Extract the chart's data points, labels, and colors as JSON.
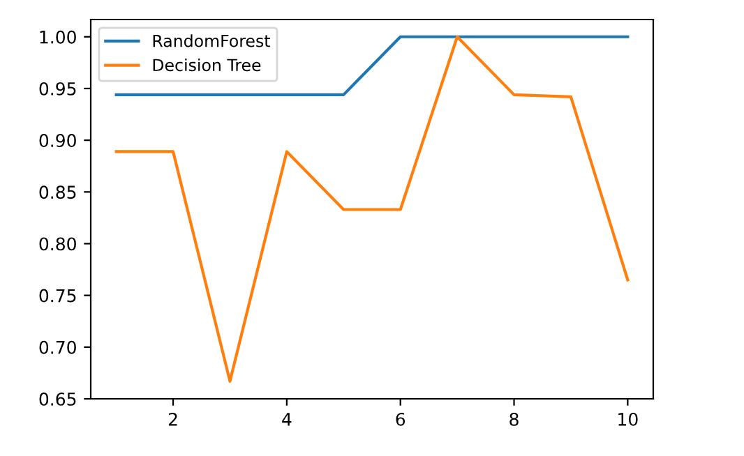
{
  "chart_data": {
    "type": "line",
    "x": [
      1,
      2,
      3,
      4,
      5,
      6,
      7,
      8,
      9,
      10
    ],
    "series": [
      {
        "name": "RandomForest",
        "color": "#1f77b4",
        "values": [
          0.944,
          0.944,
          0.944,
          0.944,
          0.944,
          1.0,
          1.0,
          1.0,
          1.0,
          1.0
        ]
      },
      {
        "name": "Decision Tree",
        "color": "#ff7f0e",
        "values": [
          0.889,
          0.889,
          0.667,
          0.889,
          0.833,
          0.833,
          1.0,
          0.944,
          0.942,
          0.765
        ]
      }
    ],
    "xlim": [
      0.55,
      10.45
    ],
    "ylim": [
      0.65,
      1.0167
    ],
    "xticks": [
      2,
      4,
      6,
      8,
      10
    ],
    "yticks": [
      {
        "value": 0.65,
        "label": "0.65"
      },
      {
        "value": 0.7,
        "label": "0.70"
      },
      {
        "value": 0.75,
        "label": "0.75"
      },
      {
        "value": 0.8,
        "label": "0.80"
      },
      {
        "value": 0.85,
        "label": "0.85"
      },
      {
        "value": 0.9,
        "label": "0.90"
      },
      {
        "value": 0.95,
        "label": "0.95"
      },
      {
        "value": 1.0,
        "label": "1.00"
      }
    ],
    "legend": "top left",
    "grid": false,
    "marker": "none",
    "line_style": "solid"
  }
}
